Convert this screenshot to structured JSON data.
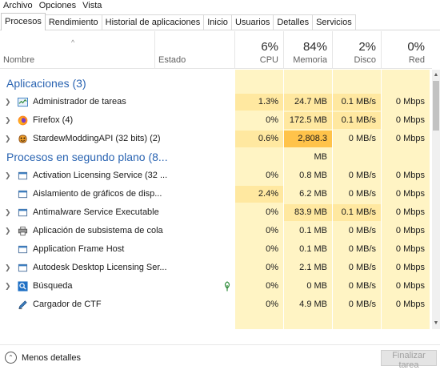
{
  "menu": [
    "Archivo",
    "Opciones",
    "Vista"
  ],
  "tabs": [
    "Procesos",
    "Rendimiento",
    "Historial de aplicaciones",
    "Inicio",
    "Usuarios",
    "Detalles",
    "Servicios"
  ],
  "active_tab": "Procesos",
  "columns": {
    "name": "Nombre",
    "status": "Estado",
    "cpu": {
      "label": "CPU",
      "total": "6%"
    },
    "memory": {
      "label": "Memoria",
      "total": "84%"
    },
    "disk": {
      "label": "Disco",
      "total": "2%"
    },
    "network": {
      "label": "Red",
      "total": "0%"
    }
  },
  "groups": [
    {
      "title": "Aplicaciones (3)",
      "processes": [
        {
          "name": "Administrador de tareas",
          "icon": "task-manager-icon",
          "expandable": true,
          "cpu": "1.3%",
          "memory": "24.7 MB",
          "disk": "0.1 MB/s",
          "network": "0 Mbps"
        },
        {
          "name": "Firefox (4)",
          "icon": "firefox-icon",
          "expandable": true,
          "cpu": "0%",
          "memory": "172.5 MB",
          "disk": "0.1 MB/s",
          "network": "0 Mbps"
        },
        {
          "name": "StardewModdingAPI (32 bits) (2)",
          "icon": "stardew-icon",
          "expandable": true,
          "cpu": "0.6%",
          "memory": "2,808.3 MB",
          "disk": "0 MB/s",
          "network": "0 Mbps"
        }
      ]
    },
    {
      "title": "Procesos en segundo plano (8...",
      "processes": [
        {
          "name": "Activation Licensing Service (32 ...",
          "icon": "app-window-icon",
          "expandable": true,
          "cpu": "0%",
          "memory": "0.8 MB",
          "disk": "0 MB/s",
          "network": "0 Mbps"
        },
        {
          "name": "Aislamiento de gráficos de disp...",
          "icon": "app-window-icon",
          "expandable": false,
          "cpu": "2.4%",
          "memory": "6.2 MB",
          "disk": "0 MB/s",
          "network": "0 Mbps"
        },
        {
          "name": "Antimalware Service Executable",
          "icon": "app-window-icon",
          "expandable": true,
          "cpu": "0%",
          "memory": "83.9 MB",
          "disk": "0.1 MB/s",
          "network": "0 Mbps"
        },
        {
          "name": "Aplicación de subsistema de cola",
          "icon": "printer-icon",
          "expandable": true,
          "cpu": "0%",
          "memory": "0.1 MB",
          "disk": "0 MB/s",
          "network": "0 Mbps"
        },
        {
          "name": "Application Frame Host",
          "icon": "app-window-icon",
          "expandable": false,
          "cpu": "0%",
          "memory": "0.1 MB",
          "disk": "0 MB/s",
          "network": "0 Mbps"
        },
        {
          "name": "Autodesk Desktop Licensing Ser...",
          "icon": "app-window-icon",
          "expandable": true,
          "cpu": "0%",
          "memory": "2.1 MB",
          "disk": "0 MB/s",
          "network": "0 Mbps"
        },
        {
          "name": "Búsqueda",
          "icon": "search-app-icon",
          "expandable": true,
          "suspended": true,
          "cpu": "0%",
          "memory": "0 MB",
          "disk": "0 MB/s",
          "network": "0 Mbps"
        },
        {
          "name": "Cargador de CTF",
          "icon": "ctf-pen-icon",
          "expandable": false,
          "cpu": "0%",
          "memory": "4.9 MB",
          "disk": "0 MB/s",
          "network": "0 Mbps"
        }
      ]
    }
  ],
  "footer": {
    "less_details": "Menos detalles",
    "end_task": "Finalizar tarea"
  },
  "colors": {
    "light_heat": "#fff4c4",
    "medium_heat": "#ffe8a0",
    "high_heat": "#ffc34a",
    "group_title": "#2a64b2"
  }
}
